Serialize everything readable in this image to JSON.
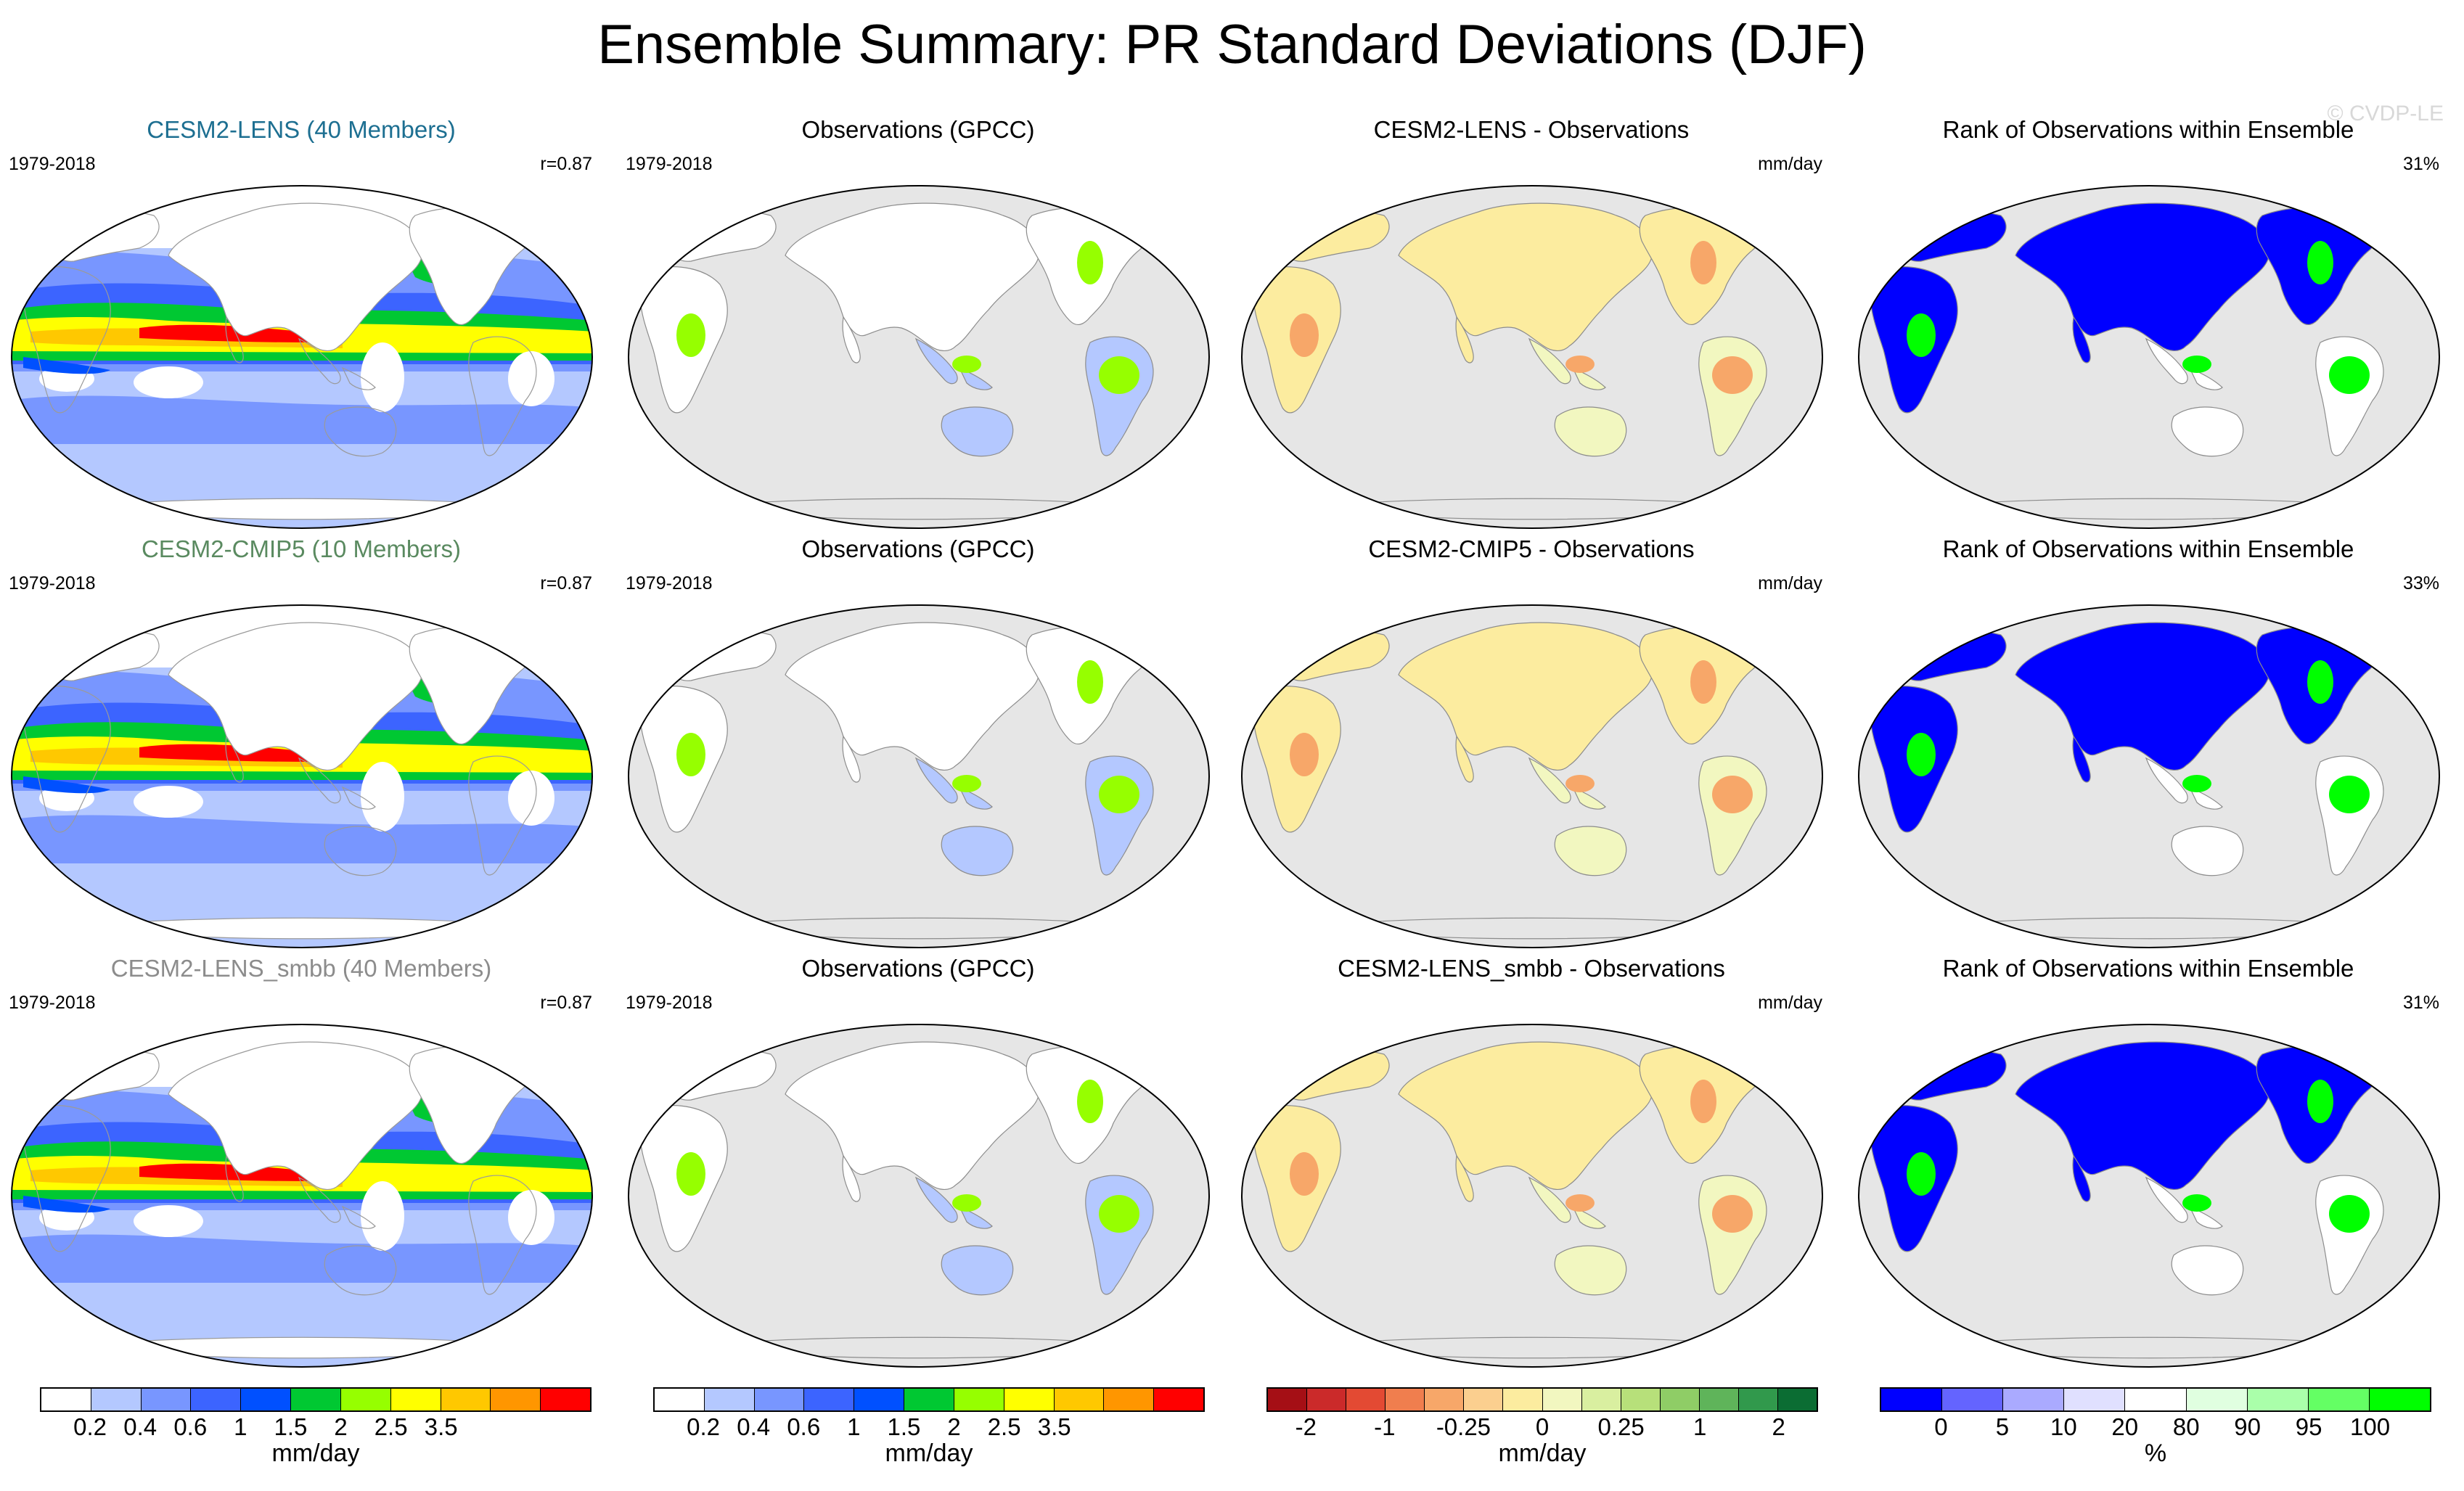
{
  "title": "Ensemble Summary: PR Standard Deviations (DJF)",
  "watermark": "© CVDP-LE",
  "colors": {
    "land": "#ffffff",
    "ocean_gray": "#e6e6e6",
    "std_levels": [
      "#ffffff",
      "#b4c8ff",
      "#7896ff",
      "#3c64ff",
      "#0050ff",
      "#00c832",
      "#96ff00",
      "#ffff00",
      "#ffc800",
      "#ff9600",
      "#ff0000"
    ],
    "diff_levels": [
      "#a50f15",
      "#cb2a2a",
      "#e34a33",
      "#f07e4e",
      "#f7a769",
      "#fbcf8f",
      "#fcec9f",
      "#f2f7c0",
      "#d9efa0",
      "#b7e07a",
      "#8fcd66",
      "#5fb45a",
      "#31994c",
      "#0b6d33"
    ],
    "rank_levels": [
      "#0000ff",
      "#6464ff",
      "#aaaaff",
      "#e0e0ff",
      "#ffffff",
      "#e0ffe0",
      "#aaffaa",
      "#64ff64",
      "#00ff00"
    ],
    "model_title_colors": [
      "#1d6f91",
      "#5a8a60",
      "#8c8c8c"
    ]
  },
  "rows": [
    {
      "model": {
        "title": "CESM2-LENS (40 Members)",
        "left": "1979-2018",
        "right": "r=0.87"
      },
      "obs": {
        "title": "Observations (GPCC)",
        "left": "1979-2018"
      },
      "diff": {
        "title": "CESM2-LENS - Observations",
        "right": "mm/day"
      },
      "rank": {
        "title": "Rank of Observations within Ensemble",
        "right": "31%"
      }
    },
    {
      "model": {
        "title": "CESM2-CMIP5 (10 Members)",
        "left": "1979-2018",
        "right": "r=0.87"
      },
      "obs": {
        "title": "Observations (GPCC)",
        "left": "1979-2018"
      },
      "diff": {
        "title": "CESM2-CMIP5 - Observations",
        "right": "mm/day"
      },
      "rank": {
        "title": "Rank of Observations within Ensemble",
        "right": "33%"
      }
    },
    {
      "model": {
        "title": "CESM2-LENS_smbb (40 Members)",
        "left": "1979-2018",
        "right": "r=0.87"
      },
      "obs": {
        "title": "Observations (GPCC)",
        "left": "1979-2018"
      },
      "diff": {
        "title": "CESM2-LENS_smbb - Observations",
        "right": "mm/day"
      },
      "rank": {
        "title": "Rank of Observations within Ensemble",
        "right": "31%"
      }
    }
  ],
  "colorbars": [
    {
      "units": "mm/day",
      "ticks": [
        "0.2",
        "0.4",
        "0.6",
        "1",
        "1.5",
        "2",
        "2.5",
        "3.5"
      ]
    },
    {
      "units": "mm/day",
      "ticks": [
        "0.2",
        "0.4",
        "0.6",
        "1",
        "1.5",
        "2",
        "2.5",
        "3.5"
      ]
    },
    {
      "units": "mm/day",
      "ticks": [
        "-2",
        "-1",
        "-0.25",
        "0",
        "0.25",
        "1",
        "2"
      ]
    },
    {
      "units": "%",
      "ticks": [
        "0",
        "5",
        "10",
        "20",
        "80",
        "90",
        "95",
        "100"
      ]
    }
  ]
}
